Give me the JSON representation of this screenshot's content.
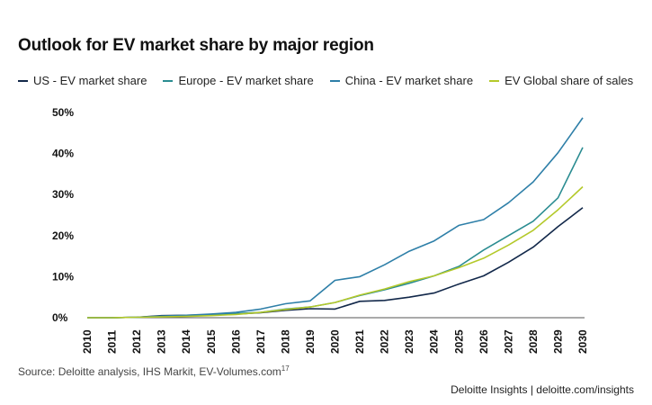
{
  "chart_data": {
    "type": "line",
    "title": "Outlook for EV market share by major region",
    "x": [
      "2010",
      "2011",
      "2012",
      "2013",
      "2014",
      "2015",
      "2016",
      "2017",
      "2018",
      "2019",
      "2020",
      "2021",
      "2022",
      "2023",
      "2024",
      "2025",
      "2026",
      "2027",
      "2028",
      "2029",
      "2030"
    ],
    "ylim": [
      0,
      50
    ],
    "yticks": [
      "0%",
      "10%",
      "20%",
      "30%",
      "40%",
      "50%"
    ],
    "series": [
      {
        "name": "US - EV market share",
        "color": "#12284a",
        "values": [
          0,
          0,
          0.1,
          0.5,
          0.6,
          0.7,
          0.9,
          1.2,
          1.8,
          2.2,
          2.1,
          4.0,
          4.2,
          5.0,
          6.0,
          8.2,
          10.2,
          13.5,
          17.2,
          22.2,
          26.8
        ]
      },
      {
        "name": "Europe - EV market share",
        "color": "#2a8c91",
        "values": [
          0,
          0,
          0.1,
          0.3,
          0.4,
          0.7,
          1.0,
          1.3,
          2.1,
          2.6,
          3.7,
          5.4,
          6.8,
          8.4,
          10.2,
          12.5,
          16.5,
          20.0,
          23.5,
          29.2,
          41.5
        ]
      },
      {
        "name": "China - EV market share",
        "color": "#2e7fa8",
        "values": [
          0,
          0,
          0.1,
          0.4,
          0.6,
          0.9,
          1.3,
          2.1,
          3.4,
          4.1,
          9.1,
          10.0,
          12.9,
          16.2,
          18.7,
          22.5,
          23.9,
          28.0,
          33.1,
          40.2,
          48.7
        ]
      },
      {
        "name": "EV Global share of sales",
        "color": "#b4c92a",
        "values": [
          0,
          0,
          0.1,
          0.2,
          0.3,
          0.5,
          0.8,
          1.3,
          2.0,
          2.6,
          3.7,
          5.5,
          7.0,
          8.8,
          10.2,
          12.2,
          14.5,
          17.7,
          21.3,
          26.3,
          31.9
        ]
      }
    ]
  },
  "source_label": "Source: Deloitte analysis, IHS Markit, EV-Volumes.com",
  "source_note": "17",
  "footer": "Deloitte Insights | deloitte.com/insights"
}
